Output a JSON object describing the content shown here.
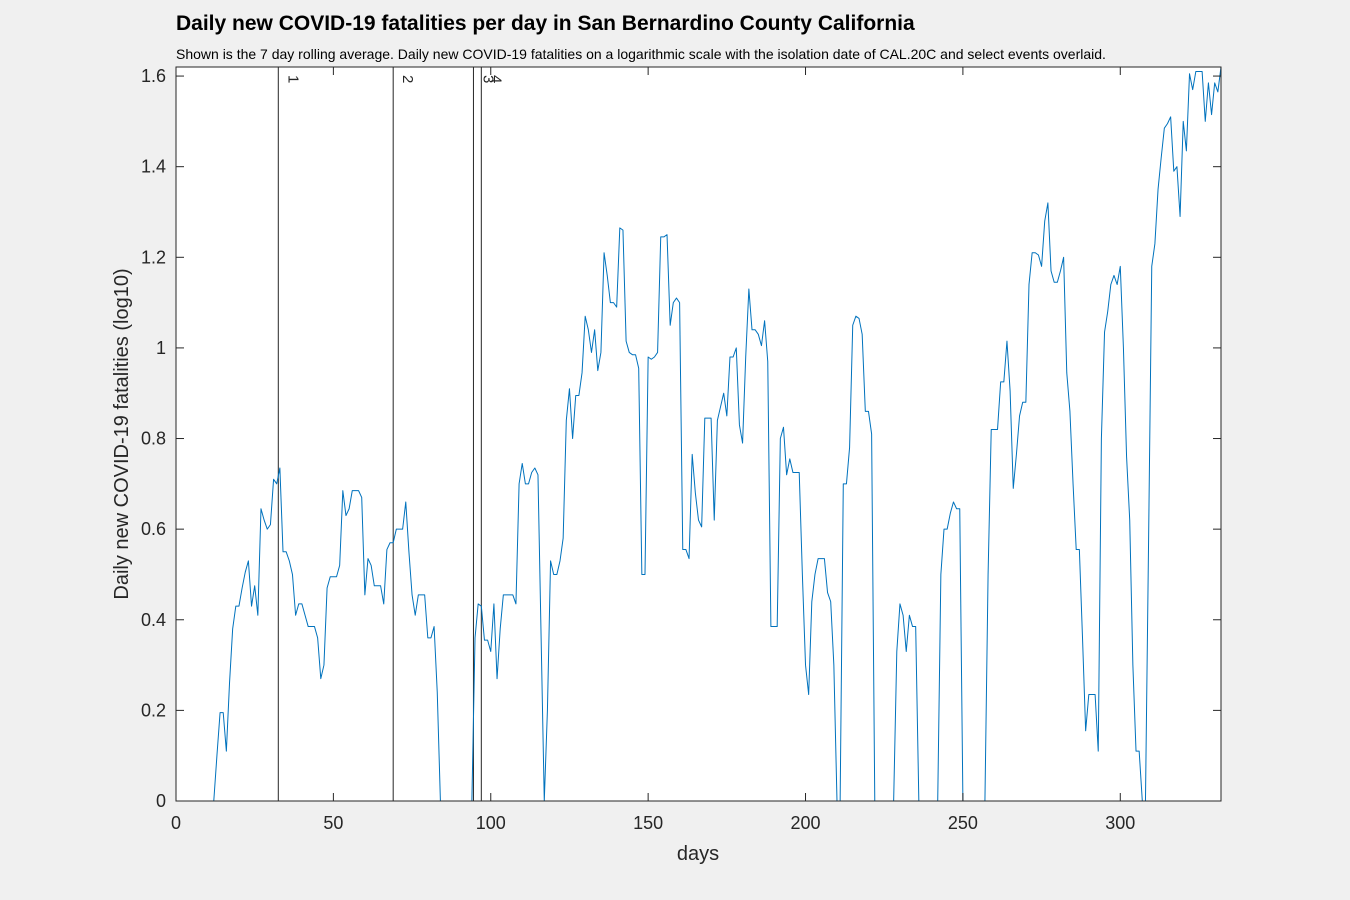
{
  "chart_data": {
    "type": "line",
    "title": "Daily new COVID-19 fatalities per day in San Bernardino County California",
    "subtitle": "Shown is the 7 day rolling average. Daily new COVID-19 fatalities on a logarithmic scale with the isolation date of CAL.20C and select events overlaid.",
    "xlabel": "days",
    "ylabel": "Daily new COVID-19 fatalities (log10)",
    "xlim": [
      0,
      332
    ],
    "ylim": [
      0,
      1.62
    ],
    "xticks": [
      0,
      50,
      100,
      150,
      200,
      250,
      300
    ],
    "yticks": [
      0,
      0.2,
      0.4,
      0.6,
      0.8,
      1,
      1.2,
      1.4,
      1.6
    ],
    "xtick_labels": [
      "0",
      "50",
      "100",
      "150",
      "200",
      "250",
      "300"
    ],
    "ytick_labels": [
      "0",
      "0.2",
      "0.4",
      "0.6",
      "0.8",
      "1",
      "1.2",
      "1.4",
      "1.6"
    ],
    "line_color": "#0072bd",
    "grid": false,
    "events": [
      {
        "label": "1",
        "x": 32.5
      },
      {
        "label": "2",
        "x": 69
      },
      {
        "label": "3",
        "x": 94.5
      },
      {
        "label": "4",
        "x": 97
      }
    ],
    "series": [
      {
        "x": [
          0,
          1,
          2,
          3,
          4,
          5,
          6,
          7,
          8,
          9,
          10,
          11,
          12,
          13,
          14,
          15,
          16,
          17,
          18,
          19,
          20,
          21,
          22,
          23,
          24,
          25,
          26,
          27,
          28,
          29,
          30,
          31,
          32,
          33,
          34,
          35,
          36,
          37,
          38,
          39,
          40,
          41,
          42,
          43,
          44,
          45,
          46,
          47,
          48,
          49,
          50,
          51,
          52,
          53,
          54,
          55,
          56,
          57,
          58,
          59,
          60,
          61,
          62,
          63,
          64,
          65,
          66,
          67,
          68,
          69,
          70,
          71,
          72,
          73,
          74,
          75,
          76,
          77,
          78,
          79,
          80,
          81,
          82,
          83,
          84,
          85,
          86,
          87,
          88,
          89,
          90,
          91,
          92,
          93,
          94,
          95,
          96,
          97,
          98,
          99,
          100,
          101,
          102,
          103,
          104,
          105,
          106,
          107,
          108,
          109,
          110,
          111,
          112,
          113,
          114,
          115,
          116,
          117,
          118,
          119,
          120,
          121,
          122,
          123,
          124,
          125,
          126,
          127,
          128,
          129,
          130,
          131,
          132,
          133,
          134,
          135,
          136,
          137,
          138,
          139,
          140,
          141,
          142,
          143,
          144,
          145,
          146,
          147,
          148,
          149,
          150,
          151,
          152,
          153,
          154,
          155,
          156,
          157,
          158,
          159,
          160,
          161,
          162,
          163,
          164,
          165,
          166,
          167,
          168,
          169,
          170,
          171,
          172,
          173,
          174,
          175,
          176,
          177,
          178,
          179,
          180,
          181,
          182,
          183,
          184,
          185,
          186,
          187,
          188,
          189,
          190,
          191,
          192,
          193,
          194,
          195,
          196,
          197,
          198,
          199,
          200,
          201,
          202,
          203,
          204,
          205,
          206,
          207,
          208,
          209,
          210,
          211,
          212,
          213,
          214,
          215,
          216,
          217,
          218,
          219,
          220,
          221,
          222,
          223,
          224,
          225,
          226,
          227,
          228,
          229,
          230,
          231,
          232,
          233,
          234,
          235,
          236,
          237,
          238,
          239,
          240,
          241,
          242,
          243,
          244,
          245,
          246,
          247,
          248,
          249,
          250,
          251,
          252,
          253,
          254,
          255,
          256,
          257,
          258,
          259,
          260,
          261,
          262,
          263,
          264,
          265,
          266,
          267,
          268,
          269,
          270,
          271,
          272,
          273,
          274,
          275,
          276,
          277,
          278,
          279,
          280,
          281,
          282,
          283,
          284,
          285,
          286,
          287,
          288,
          289,
          290,
          291,
          292,
          293,
          294,
          295,
          296,
          297,
          298,
          299,
          300,
          301,
          302,
          303,
          304,
          305,
          306,
          307,
          308,
          309,
          310,
          311,
          312,
          313,
          314,
          315,
          316,
          317,
          318,
          319,
          320,
          321,
          322,
          323,
          324,
          325,
          326,
          327,
          328,
          329,
          330,
          331,
          332
        ],
        "values": [
          0,
          0,
          0,
          0,
          0,
          0,
          0,
          0,
          0,
          0,
          0,
          0,
          0,
          0.1,
          0.195,
          0.195,
          0.11,
          0.26,
          0.38,
          0.43,
          0.43,
          0.47,
          0.505,
          0.53,
          0.43,
          0.475,
          0.41,
          0.645,
          0.62,
          0.6,
          0.61,
          0.71,
          0.7,
          0.735,
          0.55,
          0.55,
          0.53,
          0.5,
          0.41,
          0.435,
          0.435,
          0.41,
          0.385,
          0.385,
          0.385,
          0.36,
          0.27,
          0.3,
          0.47,
          0.495,
          0.495,
          0.495,
          0.52,
          0.685,
          0.63,
          0.645,
          0.685,
          0.685,
          0.685,
          0.67,
          0.455,
          0.535,
          0.52,
          0.475,
          0.475,
          0.475,
          0.435,
          0.555,
          0.57,
          0.57,
          0.6,
          0.6,
          0.6,
          0.66,
          0.55,
          0.455,
          0.41,
          0.455,
          0.455,
          0.455,
          0.36,
          0.36,
          0.385,
          0.24,
          0,
          0,
          0,
          0,
          0,
          0,
          0,
          0,
          0,
          0,
          0,
          0.36,
          0.435,
          0.43,
          0.355,
          0.355,
          0.33,
          0.435,
          0.27,
          0.38,
          0.455,
          0.455,
          0.455,
          0.455,
          0.435,
          0.7,
          0.745,
          0.7,
          0.7,
          0.725,
          0.735,
          0.72,
          0.36,
          0,
          0.2,
          0.53,
          0.5,
          0.5,
          0.53,
          0.58,
          0.84,
          0.91,
          0.8,
          0.895,
          0.895,
          0.945,
          1.07,
          1.04,
          0.99,
          1.04,
          0.95,
          0.99,
          1.21,
          1.16,
          1.1,
          1.1,
          1.09,
          1.265,
          1.26,
          1.015,
          0.99,
          0.985,
          0.985,
          0.955,
          0.5,
          0.5,
          0.98,
          0.975,
          0.98,
          0.99,
          1.245,
          1.245,
          1.25,
          1.05,
          1.1,
          1.11,
          1.1,
          0.555,
          0.555,
          0.535,
          0.765,
          0.68,
          0.62,
          0.605,
          0.845,
          0.845,
          0.845,
          0.62,
          0.84,
          0.87,
          0.9,
          0.85,
          0.98,
          0.98,
          1,
          0.83,
          0.79,
          0.98,
          1.13,
          1.04,
          1.04,
          1.03,
          1.005,
          1.06,
          0.97,
          0.385,
          0.385,
          0.385,
          0.8,
          0.825,
          0.72,
          0.755,
          0.725,
          0.725,
          0.725,
          0.5,
          0.3,
          0.235,
          0.44,
          0.5,
          0.535,
          0.535,
          0.535,
          0.46,
          0.44,
          0.3,
          0,
          0,
          0.7,
          0.7,
          0.78,
          1.05,
          1.07,
          1.065,
          1.03,
          0.86,
          0.86,
          0.81,
          0,
          0,
          0,
          0,
          0,
          0,
          0,
          0.33,
          0.435,
          0.41,
          0.33,
          0.41,
          0.385,
          0.385,
          0,
          0,
          0,
          0,
          0,
          0,
          0,
          0.5,
          0.6,
          0.6,
          0.635,
          0.66,
          0.645,
          0.645,
          0,
          0,
          0,
          0,
          0,
          0,
          0,
          0,
          0.5,
          0.82,
          0.82,
          0.82,
          0.925,
          0.925,
          1.015,
          0.905,
          0.69,
          0.765,
          0.85,
          0.88,
          0.88,
          1.14,
          1.21,
          1.21,
          1.205,
          1.18,
          1.28,
          1.32,
          1.17,
          1.145,
          1.145,
          1.17,
          1.2,
          0.945,
          0.86,
          0.7,
          0.555,
          0.555,
          0.36,
          0.155,
          0.235,
          0.235,
          0.235,
          0.11,
          0.8,
          1.035,
          1.08,
          1.14,
          1.16,
          1.14,
          1.18,
          1,
          0.76,
          0.62,
          0.3,
          0.11,
          0.11,
          0,
          0,
          0.58,
          1.18,
          1.23,
          1.35,
          1.42,
          1.485,
          1.495,
          1.51,
          1.39,
          1.4,
          1.29,
          1.5,
          1.435,
          1.605,
          1.57,
          1.61,
          1.61,
          1.61,
          1.5,
          1.585,
          1.515,
          1.585,
          1.565,
          1.62
        ]
      }
    ]
  }
}
